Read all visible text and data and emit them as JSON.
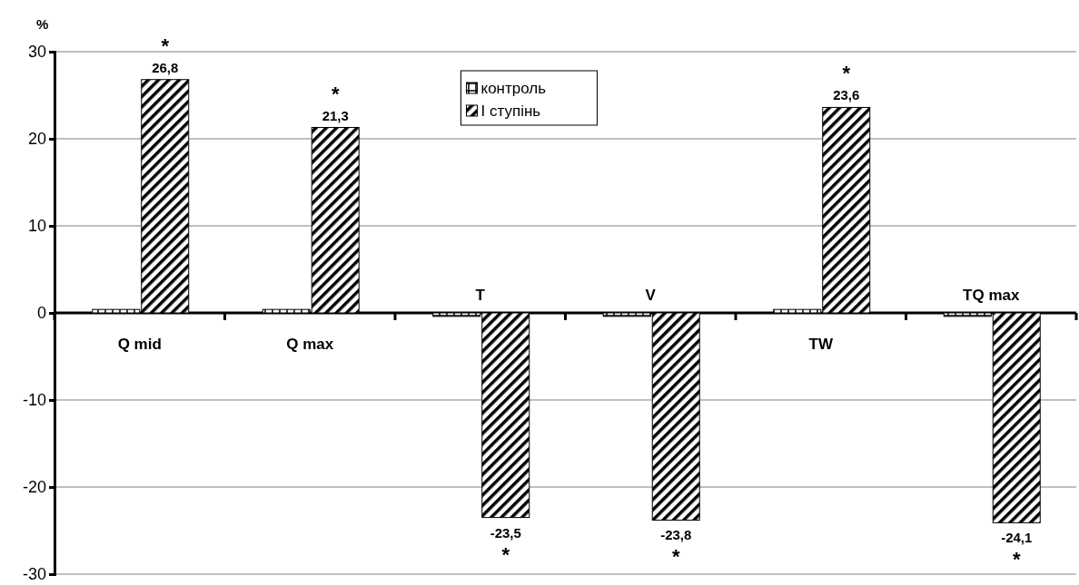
{
  "chart_data": {
    "type": "bar",
    "ylabel": "%",
    "categories": [
      "Q mid",
      "Q max",
      "T",
      "V",
      "TW",
      "TQ max"
    ],
    "series": [
      {
        "name": "контроль",
        "color": "#000000",
        "values": [
          0.4,
          0.4,
          -0.4,
          -0.4,
          0.4,
          -0.4
        ]
      },
      {
        "name": "І ступінь",
        "color": "#000000",
        "values": [
          26.8,
          21.3,
          -23.5,
          -23.8,
          23.6,
          -24.1
        ],
        "value_labels": [
          "26,8",
          "21,3",
          "-23,5",
          "-23,8",
          "23,6",
          "-24,1"
        ]
      }
    ],
    "ylim": [
      -30,
      30
    ],
    "yticks": [
      -30,
      -20,
      -10,
      0,
      10,
      20,
      30
    ],
    "grid": "y",
    "legend": "top",
    "annotations": [
      "*",
      "*",
      "*",
      "*",
      "*",
      "*"
    ]
  }
}
